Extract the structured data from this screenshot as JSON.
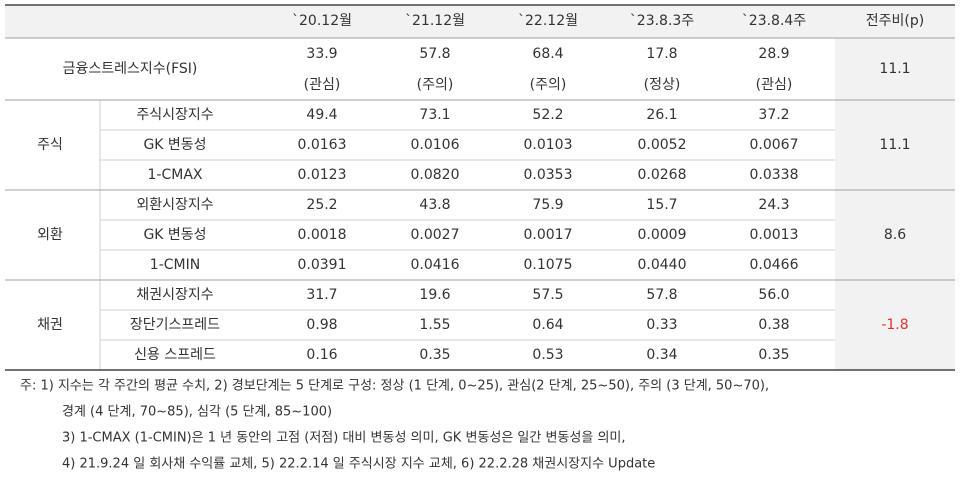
{
  "table": {
    "columns": [
      "`20.12월",
      "`21.12월",
      "`22.12월",
      "`23.8.3주",
      "`23.8.4주",
      "전주비(p)"
    ],
    "fsi": {
      "label": "금융스트레스지수(FSI)",
      "values": [
        "33.9",
        "57.8",
        "68.4",
        "17.8",
        "28.9"
      ],
      "levels": [
        "(관심)",
        "(주의)",
        "(주의)",
        "(정상)",
        "(관심)"
      ],
      "change": "11.1"
    },
    "groups": [
      {
        "name": "주식",
        "change": "11.1",
        "rows": [
          {
            "label": "주식시장지수",
            "values": [
              "49.4",
              "73.1",
              "52.2",
              "26.1",
              "37.2"
            ]
          },
          {
            "label": "GK 변동성",
            "values": [
              "0.0163",
              "0.0106",
              "0.0103",
              "0.0052",
              "0.0067"
            ]
          },
          {
            "label": "1-CMAX",
            "values": [
              "0.0123",
              "0.0820",
              "0.0353",
              "0.0268",
              "0.0338"
            ]
          }
        ]
      },
      {
        "name": "외환",
        "change": "8.6",
        "rows": [
          {
            "label": "외환시장지수",
            "values": [
              "25.2",
              "43.8",
              "75.9",
              "15.7",
              "24.3"
            ]
          },
          {
            "label": "GK 변동성",
            "values": [
              "0.0018",
              "0.0027",
              "0.0017",
              "0.0009",
              "0.0013"
            ]
          },
          {
            "label": "1-CMIN",
            "values": [
              "0.0391",
              "0.0416",
              "0.1075",
              "0.0440",
              "0.0466"
            ]
          }
        ]
      },
      {
        "name": "채권",
        "change": "-1.8",
        "rows": [
          {
            "label": "채권시장지수",
            "values": [
              "31.7",
              "19.6",
              "57.5",
              "57.8",
              "56.0"
            ]
          },
          {
            "label": "장단기스프레드",
            "values": [
              "0.98",
              "1.55",
              "0.64",
              "0.33",
              "0.38"
            ]
          },
          {
            "label": "신용 스프레드",
            "values": [
              "0.16",
              "0.35",
              "0.53",
              "0.34",
              "0.35"
            ]
          }
        ]
      }
    ]
  },
  "notes": [
    "주: 1) 지수는 각 주간의 평균 수치, 2) 경보단계는 5 단계로 구성: 정상 (1 단계, 0~25), 관심(2 단계, 25~50), 주의 (3 단계, 50~70),",
    "경계 (4 단계, 70~85), 심각 (5 단계, 85~100)",
    "3) 1-CMAX (1-CMIN)은 1 년 동안의 고점 (저점) 대비 변동성 의미, GK 변동성은 일간 변동성을 의미,",
    "4) 21.9.24 일 회사채 수익률 교체, 5) 22.2.14 일 주식시장 지수 교체, 6) 22.2.28 채권시장지수 Update"
  ]
}
